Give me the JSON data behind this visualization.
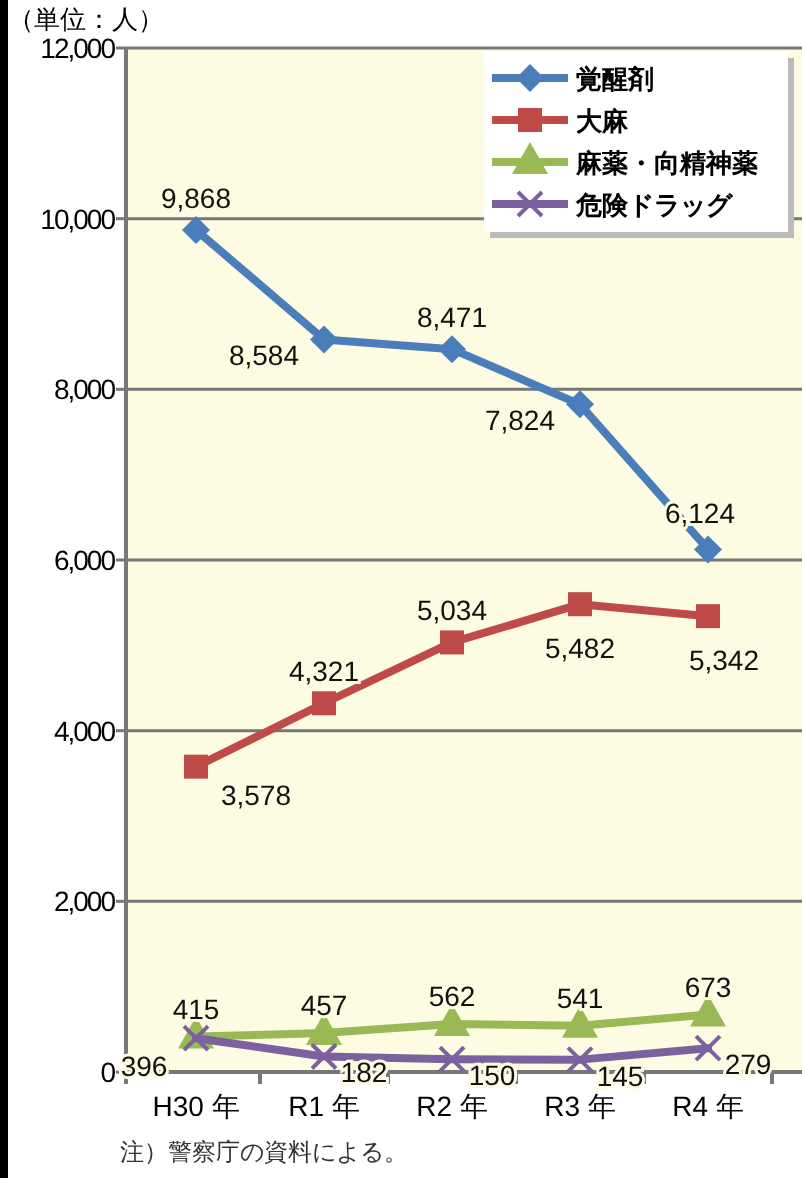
{
  "chart_data": {
    "type": "line",
    "ylabel": "（単位：人）",
    "categories": [
      "H30 年",
      "R1 年",
      "R2 年",
      "R3 年",
      "R4 年"
    ],
    "series": [
      {
        "name": "覚醒剤",
        "color": "#4a7ebb",
        "marker": "diamond",
        "values": [
          9868,
          8584,
          8471,
          7824,
          6124
        ],
        "value_labels": [
          "9,868",
          "8,584",
          "8,471",
          "7,824",
          "6,124"
        ]
      },
      {
        "name": "大麻",
        "color": "#be4b48",
        "marker": "square",
        "values": [
          3578,
          4321,
          5034,
          5482,
          5342
        ],
        "value_labels": [
          "3,578",
          "4,321",
          "5,034",
          "5,482",
          "5,342"
        ]
      },
      {
        "name": "麻薬・向精神薬",
        "color": "#98b954",
        "marker": "triangle",
        "values": [
          415,
          457,
          562,
          541,
          673
        ],
        "value_labels": [
          "415",
          "457",
          "562",
          "541",
          "673"
        ]
      },
      {
        "name": "危険ドラッグ",
        "color": "#7d60a0",
        "marker": "cross",
        "values": [
          396,
          182,
          150,
          145,
          279
        ],
        "value_labels": [
          "396",
          "182",
          "150",
          "145",
          "279"
        ]
      }
    ],
    "ylim": [
      0,
      12000
    ],
    "yticks": [
      {
        "value": 0,
        "label": "0"
      },
      {
        "value": 2000,
        "label": "2,000"
      },
      {
        "value": 4000,
        "label": "4,000"
      },
      {
        "value": 6000,
        "label": "6,000"
      },
      {
        "value": 8000,
        "label": "8,000"
      },
      {
        "value": 10000,
        "label": "10,000"
      },
      {
        "value": 12000,
        "label": "12,000"
      }
    ],
    "grid": "y",
    "legend": "top right",
    "annotations": [
      "注）警察庁の資料による。"
    ]
  }
}
